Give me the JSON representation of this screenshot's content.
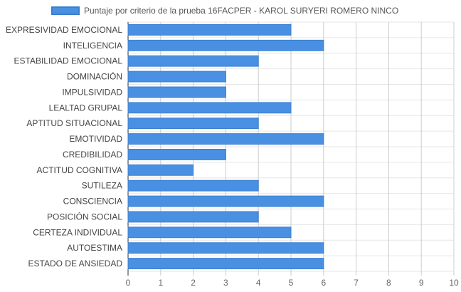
{
  "chart_data": {
    "type": "bar",
    "orientation": "horizontal",
    "title": "",
    "xlabel": "",
    "ylabel": "",
    "categories": [
      "EXPRESIVIDAD EMOCIONAL",
      "INTELIGENCIA",
      "ESTABILIDAD EMOCIONAL",
      "DOMINACIÓN",
      "IMPULSIVIDAD",
      "LEALTAD GRUPAL",
      "APTITUD SITUACIONAL",
      "EMOTIVIDAD",
      "CREDIBILIDAD",
      "ACTITUD COGNITIVA",
      "SUTILEZA",
      "CONSCIENCIA",
      "POSICIÓN SOCIAL",
      "CERTEZA INDIVIDUAL",
      "AUTOESTIMA",
      "ESTADO DE ANSIEDAD"
    ],
    "series": [
      {
        "name": "Puntaje por criterio de la prueba 16FACPER - KAROL SURYERI ROMERO NINCO",
        "values": [
          5,
          6,
          4,
          3,
          3,
          5,
          4,
          6,
          3,
          2,
          4,
          6,
          4,
          5,
          6,
          6
        ],
        "color": "#4a90e2"
      }
    ],
    "xlim": [
      0,
      10
    ],
    "xticks": [
      "0",
      "1",
      "2",
      "3",
      "4",
      "5",
      "6",
      "7",
      "8",
      "9",
      "10"
    ],
    "grid": true,
    "legend_position": "top"
  }
}
